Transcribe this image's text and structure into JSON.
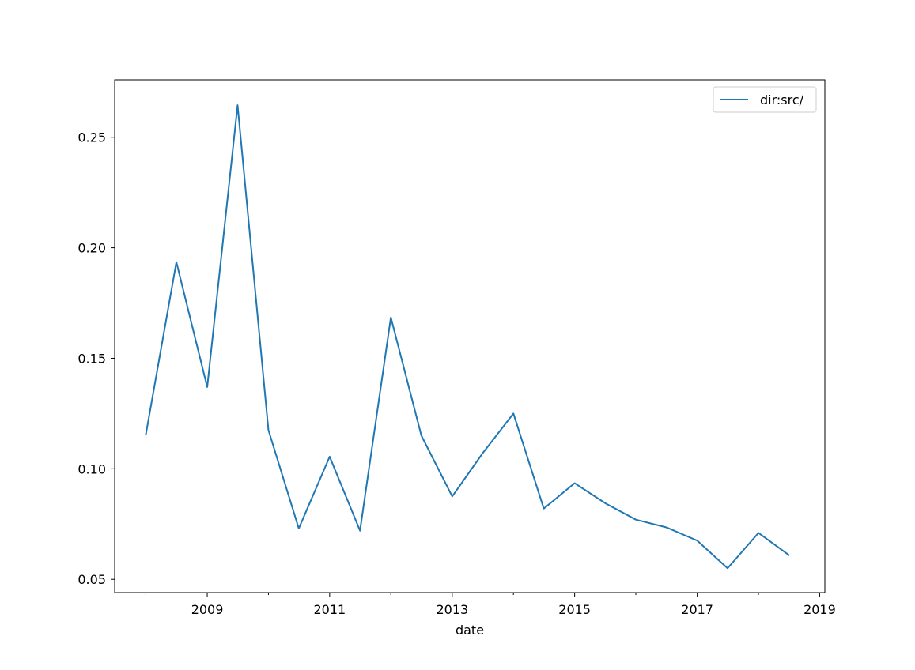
{
  "chart_data": {
    "type": "line",
    "title": "",
    "xlabel": "date",
    "ylabel": "",
    "x_axis_type": "date",
    "xlim": [
      "2007-06-29",
      "2019-02-01"
    ],
    "ylim": [
      0.044,
      0.276
    ],
    "x_ticks": [
      "2009-01-01",
      "2011-01-01",
      "2013-01-01",
      "2015-01-01",
      "2017-01-01",
      "2019-01-01"
    ],
    "x_tick_labels": [
      "2009",
      "2011",
      "2013",
      "2015",
      "2017",
      "2019"
    ],
    "x_minor_ticks": [
      "2008-01-01",
      "2010-01-01",
      "2012-01-01",
      "2014-01-01",
      "2016-01-01",
      "2018-01-01"
    ],
    "y_ticks": [
      0.05,
      0.1,
      0.15,
      0.2,
      0.25
    ],
    "y_tick_labels": [
      "0.05",
      "0.10",
      "0.15",
      "0.20",
      "0.25"
    ],
    "grid": false,
    "legend": {
      "placement": "upper right",
      "entries": [
        "dir:src/"
      ]
    },
    "series": [
      {
        "name": "dir:src/",
        "color": "#1f77b4",
        "x": [
          "2008-01-01",
          "2008-07-01",
          "2009-01-01",
          "2009-07-01",
          "2010-01-01",
          "2010-07-01",
          "2011-01-01",
          "2011-07-01",
          "2012-01-01",
          "2012-07-01",
          "2013-01-01",
          "2013-07-01",
          "2014-01-01",
          "2014-07-01",
          "2015-01-01",
          "2015-07-01",
          "2016-01-01",
          "2016-07-01",
          "2017-01-01",
          "2017-07-01",
          "2018-01-01",
          "2018-07-01"
        ],
        "values": [
          0.1155,
          0.1935,
          0.137,
          0.2645,
          0.1175,
          0.073,
          0.1055,
          0.072,
          0.1685,
          0.115,
          0.0875,
          0.107,
          0.125,
          0.082,
          0.0935,
          0.0845,
          0.077,
          0.0735,
          0.0675,
          0.055,
          0.071,
          0.061
        ]
      }
    ]
  }
}
